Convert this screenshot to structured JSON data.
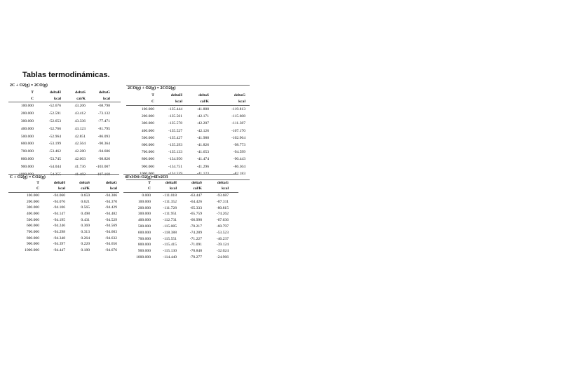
{
  "page_title": "Tablas termodinámicas.",
  "tables": [
    {
      "title": "2C + O2(g) = 2CO(g)",
      "headers": [
        "T",
        "deltaH",
        "deltaS",
        "deltaG"
      ],
      "units": [
        "C",
        "kcal",
        "cal/K",
        "kcal"
      ],
      "rows": [
        [
          "100.000",
          "-52.676",
          "43.206",
          "-68.798"
        ],
        [
          "200.000",
          "-52.591",
          "43.412",
          "-73.132"
        ],
        [
          "300.000",
          "-52.653",
          "43.336",
          "-77.471"
        ],
        [
          "400.000",
          "-52.766",
          "43.123",
          "-81.795"
        ],
        [
          "500.000",
          "-52.964",
          "42.851",
          "-86.093"
        ],
        [
          "600.000",
          "-53.199",
          "42.564",
          "-90.364"
        ],
        [
          "700.000",
          "-53.462",
          "42.280",
          "-94.606"
        ],
        [
          "800.000",
          "-53.745",
          "42.003",
          "-98.820"
        ],
        [
          "900.000",
          "-54.044",
          "41.736",
          "-103.007"
        ],
        [
          "1000.000",
          "-54.355",
          "41.482",
          "-107.168"
        ]
      ]
    },
    {
      "title": "2CO(g) + O2(g) = 2CO2(g)",
      "headers": [
        "T",
        "deltaH",
        "deltaS",
        "deltaG"
      ],
      "units": [
        "C",
        "kcal",
        "cal/K",
        "kcal"
      ],
      "rows": [
        [
          "100.000",
          "-135.444",
          "-41.888",
          "-119.813"
        ],
        [
          "200.000",
          "-135.561",
          "-42.171",
          "-115.608"
        ],
        [
          "300.000",
          "-135.578",
          "-42.207",
          "-111.387"
        ],
        [
          "400.000",
          "-135.527",
          "-42.126",
          "-107.170"
        ],
        [
          "500.000",
          "-135.427",
          "-41.988",
          "-102.964"
        ],
        [
          "600.000",
          "-135.293",
          "-41.826",
          "-98.773"
        ],
        [
          "700.000",
          "-135.133",
          "-41.653",
          "-94.599"
        ],
        [
          "800.000",
          "-134.950",
          "-41.474",
          "-90.443"
        ],
        [
          "900.000",
          "-134.751",
          "-41.296",
          "-86.304"
        ],
        [
          "1000.000",
          "-134.539",
          "-41.123",
          "-82.183"
        ]
      ]
    },
    {
      "title": "C + O2(g) = CO2(g)",
      "headers": [
        "T",
        "deltaH",
        "deltaS",
        "deltaG"
      ],
      "units": [
        "C",
        "kcal",
        "cal/K",
        "kcal"
      ],
      "rows": [
        [
          "100.000",
          "-94.060",
          "0.659",
          "-94.306"
        ],
        [
          "200.000",
          "-94.076",
          "0.621",
          "-94.370"
        ],
        [
          "300.000",
          "-94.106",
          "0.565",
          "-94.429"
        ],
        [
          "400.000",
          "-94.147",
          "0.498",
          "-94.482"
        ],
        [
          "500.000",
          "-94.195",
          "0.431",
          "-94.529"
        ],
        [
          "600.000",
          "-94.246",
          "0.369",
          "-94.569"
        ],
        [
          "700.000",
          "-94.298",
          "0.313",
          "-94.603"
        ],
        [
          "800.000",
          "-94.348",
          "0.264",
          "-94.632"
        ],
        [
          "900.000",
          "-94.397",
          "0.220",
          "-94.656"
        ],
        [
          "1000.000",
          "-94.447",
          "0.180",
          "-94.676"
        ]
      ]
    },
    {
      "title": "4Fe3O4+O2(g)=6Fe2O3",
      "headers": [
        "T",
        "deltaH",
        "deltaS",
        "deltaG"
      ],
      "units": [
        "C",
        "kcal",
        "cal/K",
        "kcal"
      ],
      "rows": [
        [
          "0.000",
          "-111.018",
          "-63.447",
          "-93.687"
        ],
        [
          "100.000",
          "-111.352",
          "-64.426",
          "-87.311"
        ],
        [
          "200.000",
          "-111.728",
          "-65.333",
          "-80.815"
        ],
        [
          "300.000",
          "-111.951",
          "-65.759",
          "-74.262"
        ],
        [
          "400.000",
          "-112.731",
          "-66.990",
          "-67.636"
        ],
        [
          "500.000",
          "-115.085",
          "-70.217",
          "-60.797"
        ],
        [
          "600.000",
          "-118.388",
          "-74.289",
          "-53.523"
        ],
        [
          "700.000",
          "-115.551",
          "-71.227",
          "-46.237"
        ],
        [
          "800.000",
          "-115.415",
          "-71.091",
          "-39.124"
        ],
        [
          "900.000",
          "-115.130",
          "-70.840",
          "-32.024"
        ],
        [
          "1000.000",
          "-114.440",
          "-70.277",
          "-24.966"
        ]
      ]
    }
  ]
}
